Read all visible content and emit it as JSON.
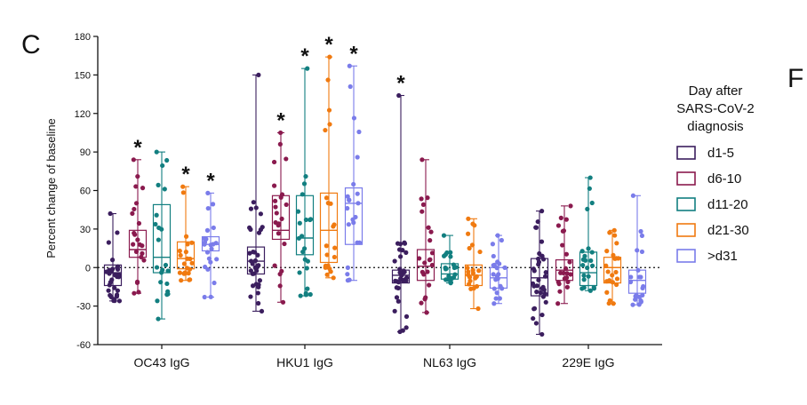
{
  "panel_label": "C",
  "right_edge_letter": "F",
  "chart_data": {
    "type": "box-dot",
    "ylabel": "Percent change of baseline",
    "ylim": [
      -60,
      180
    ],
    "yticks": [
      -60,
      -30,
      0,
      30,
      60,
      90,
      120,
      150,
      180
    ],
    "reference_line": 0,
    "categories": [
      "OC43  IgG",
      "HKU1  IgG",
      "NL63  IgG",
      "229E  IgG"
    ],
    "legend": {
      "title": [
        "Day after",
        "SARS-CoV-2",
        "diagnosis"
      ],
      "placement": "right"
    },
    "series": [
      {
        "name": "d1-5",
        "color": "#3b1e5e",
        "boxes": [
          {
            "min": -26,
            "q1": -14,
            "median": -4,
            "q3": 2,
            "max": 42,
            "significant": false
          },
          {
            "min": -34,
            "q1": -5,
            "median": 5,
            "q3": 16,
            "max": 150,
            "significant": false
          },
          {
            "min": -50,
            "q1": -12,
            "median": -6,
            "q3": -2,
            "max": 134,
            "significant": true
          },
          {
            "min": -52,
            "q1": -22,
            "median": -8,
            "q3": 7,
            "max": 44,
            "significant": false
          }
        ]
      },
      {
        "name": "d6-10",
        "color": "#8a1a4e",
        "boxes": [
          {
            "min": -20,
            "q1": 8,
            "median": 14,
            "q3": 29,
            "max": 84,
            "significant": true
          },
          {
            "min": -27,
            "q1": 22,
            "median": 29,
            "q3": 56,
            "max": 105,
            "significant": true
          },
          {
            "min": -35,
            "q1": -10,
            "median": 1,
            "q3": 14,
            "max": 84,
            "significant": false
          },
          {
            "min": -28,
            "q1": -10,
            "median": -2,
            "q3": 6,
            "max": 48,
            "significant": false
          }
        ]
      },
      {
        "name": "d11-20",
        "color": "#127f80",
        "boxes": [
          {
            "min": -40,
            "q1": -4,
            "median": 8,
            "q3": 49,
            "max": 90,
            "significant": false
          },
          {
            "min": -22,
            "q1": 10,
            "median": 23,
            "q3": 56,
            "max": 155,
            "significant": true
          },
          {
            "min": -12,
            "q1": -9,
            "median": -5,
            "q3": 3,
            "max": 25,
            "significant": false
          },
          {
            "min": -18,
            "q1": -14,
            "median": -4,
            "q3": 12,
            "max": 70,
            "significant": false
          }
        ]
      },
      {
        "name": "d21-30",
        "color": "#f07a10",
        "boxes": [
          {
            "min": -10,
            "q1": -1,
            "median": 7,
            "q3": 20,
            "max": 63,
            "significant": true
          },
          {
            "min": -8,
            "q1": 4,
            "median": 29,
            "q3": 58,
            "max": 164,
            "significant": true
          },
          {
            "min": -32,
            "q1": -14,
            "median": -6,
            "q3": 2,
            "max": 38,
            "significant": false
          },
          {
            "min": -28,
            "q1": -12,
            "median": 0,
            "q3": 8,
            "max": 29,
            "significant": false
          }
        ]
      },
      {
        "name": ">d31",
        "color": "#7a7cea",
        "boxes": [
          {
            "min": -23,
            "q1": 13,
            "median": 18,
            "q3": 24,
            "max": 58,
            "significant": true
          },
          {
            "min": -10,
            "q1": 18,
            "median": 50,
            "q3": 62,
            "max": 157,
            "significant": true
          },
          {
            "min": -28,
            "q1": -16,
            "median": -8,
            "q3": 0,
            "max": 25,
            "significant": false
          },
          {
            "min": -29,
            "q1": -20,
            "median": -10,
            "q3": -2,
            "max": 56,
            "significant": false
          }
        ]
      }
    ],
    "significance_marker": "*"
  }
}
